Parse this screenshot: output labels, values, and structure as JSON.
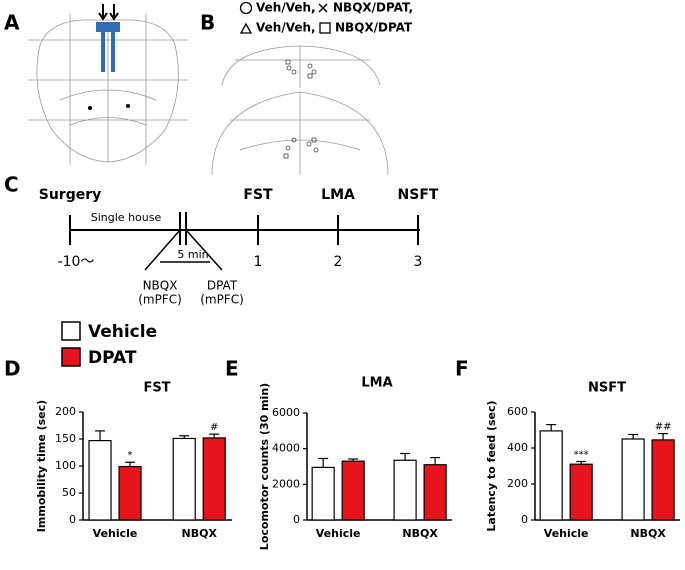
{
  "panels": [
    "A",
    "B",
    "C",
    "D",
    "E",
    "F"
  ],
  "section_b": {
    "legend": [
      "Veh/Veh,",
      "NBQX/DPAT,",
      "Veh/Veh,",
      "NBQX/DPAT"
    ]
  },
  "timeline": {
    "events": [
      "Surgery",
      "FST",
      "LMA",
      "NSFT"
    ],
    "days": [
      "-10〜",
      "1",
      "2",
      "3"
    ],
    "single_house": "Single house",
    "interval": "5 min",
    "drugs": [
      [
        "NBQX",
        "(mPFC)"
      ],
      [
        "DPAT",
        "(mPFC)"
      ]
    ]
  },
  "chart_data": [
    {
      "type": "bar",
      "title": "FST",
      "y_label": "Immobility time (sec)",
      "categories": [
        "Vehicle",
        "NBQX"
      ],
      "series": [
        {
          "name": "Vehicle",
          "color": "#ffffff",
          "values": [
            147,
            151
          ],
          "errors": [
            18,
            5
          ]
        },
        {
          "name": "DPAT",
          "color": "#e8141b",
          "values": [
            99,
            152
          ],
          "errors": [
            8,
            7
          ],
          "annotations": [
            "*",
            "#"
          ]
        }
      ],
      "ylim": [
        0,
        200
      ],
      "yticks": [
        0,
        50,
        100,
        150,
        200
      ]
    },
    {
      "type": "bar",
      "title": "LMA",
      "y_label": "Locomotor counts (30 min)",
      "categories": [
        "Vehicle",
        "NBQX"
      ],
      "series": [
        {
          "name": "Vehicle",
          "color": "#ffffff",
          "values": [
            2950,
            3350
          ],
          "errors": [
            500,
            380
          ]
        },
        {
          "name": "DPAT",
          "color": "#e8141b",
          "values": [
            3300,
            3100
          ],
          "errors": [
            120,
            400
          ]
        }
      ],
      "ylim": [
        0,
        6000
      ],
      "yticks": [
        0,
        2000,
        4000,
        6000
      ]
    },
    {
      "type": "bar",
      "title": "NSFT",
      "y_label": "Latency to feed (sec)",
      "categories": [
        "Vehicle",
        "NBQX"
      ],
      "series": [
        {
          "name": "Vehicle",
          "color": "#ffffff",
          "values": [
            495,
            450
          ],
          "errors": [
            35,
            25
          ]
        },
        {
          "name": "DPAT",
          "color": "#e8141b",
          "values": [
            310,
            445
          ],
          "errors": [
            15,
            35
          ],
          "annotations": [
            "***",
            "##"
          ]
        }
      ],
      "ylim": [
        0,
        600
      ],
      "yticks": [
        0,
        200,
        400,
        600
      ]
    }
  ]
}
